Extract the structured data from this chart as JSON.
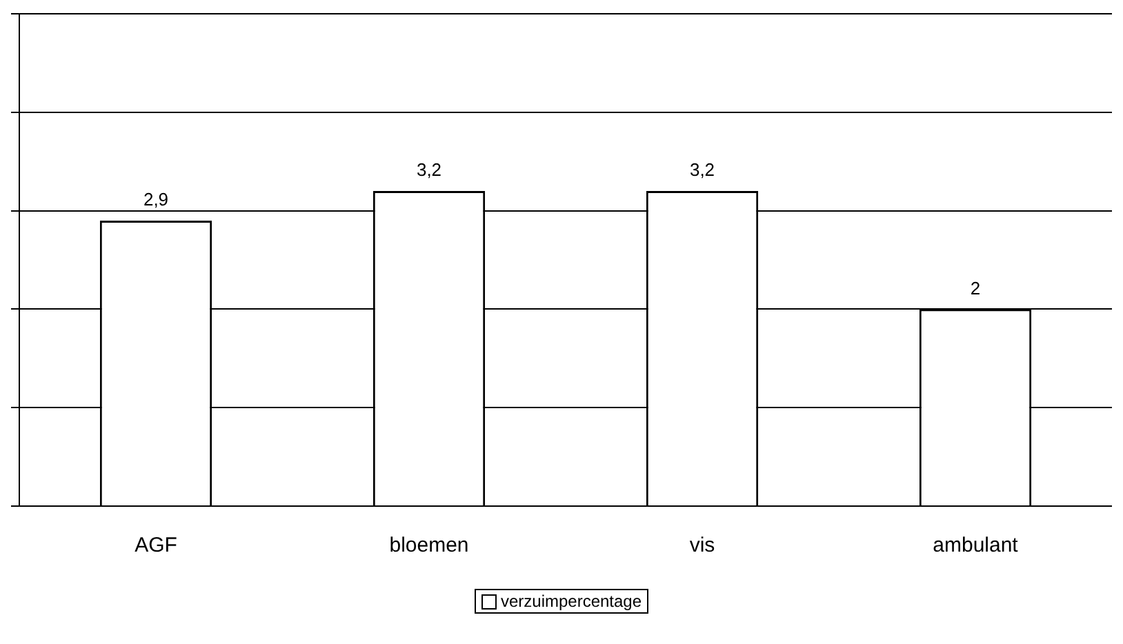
{
  "chart_data": {
    "type": "bar",
    "categories": [
      "AGF",
      "bloemen",
      "vis",
      "ambulant"
    ],
    "series": [
      {
        "name": "verzuimpercentage",
        "color": "#ffffff",
        "values": [
          2.9,
          3.2,
          3.2,
          2
        ],
        "value_labels": [
          "2,9",
          "3,2",
          "3,2",
          "2"
        ]
      }
    ],
    "ylim": [
      0,
      5
    ],
    "tick_labels": "x",
    "grid": "y",
    "legend": "bottom"
  }
}
